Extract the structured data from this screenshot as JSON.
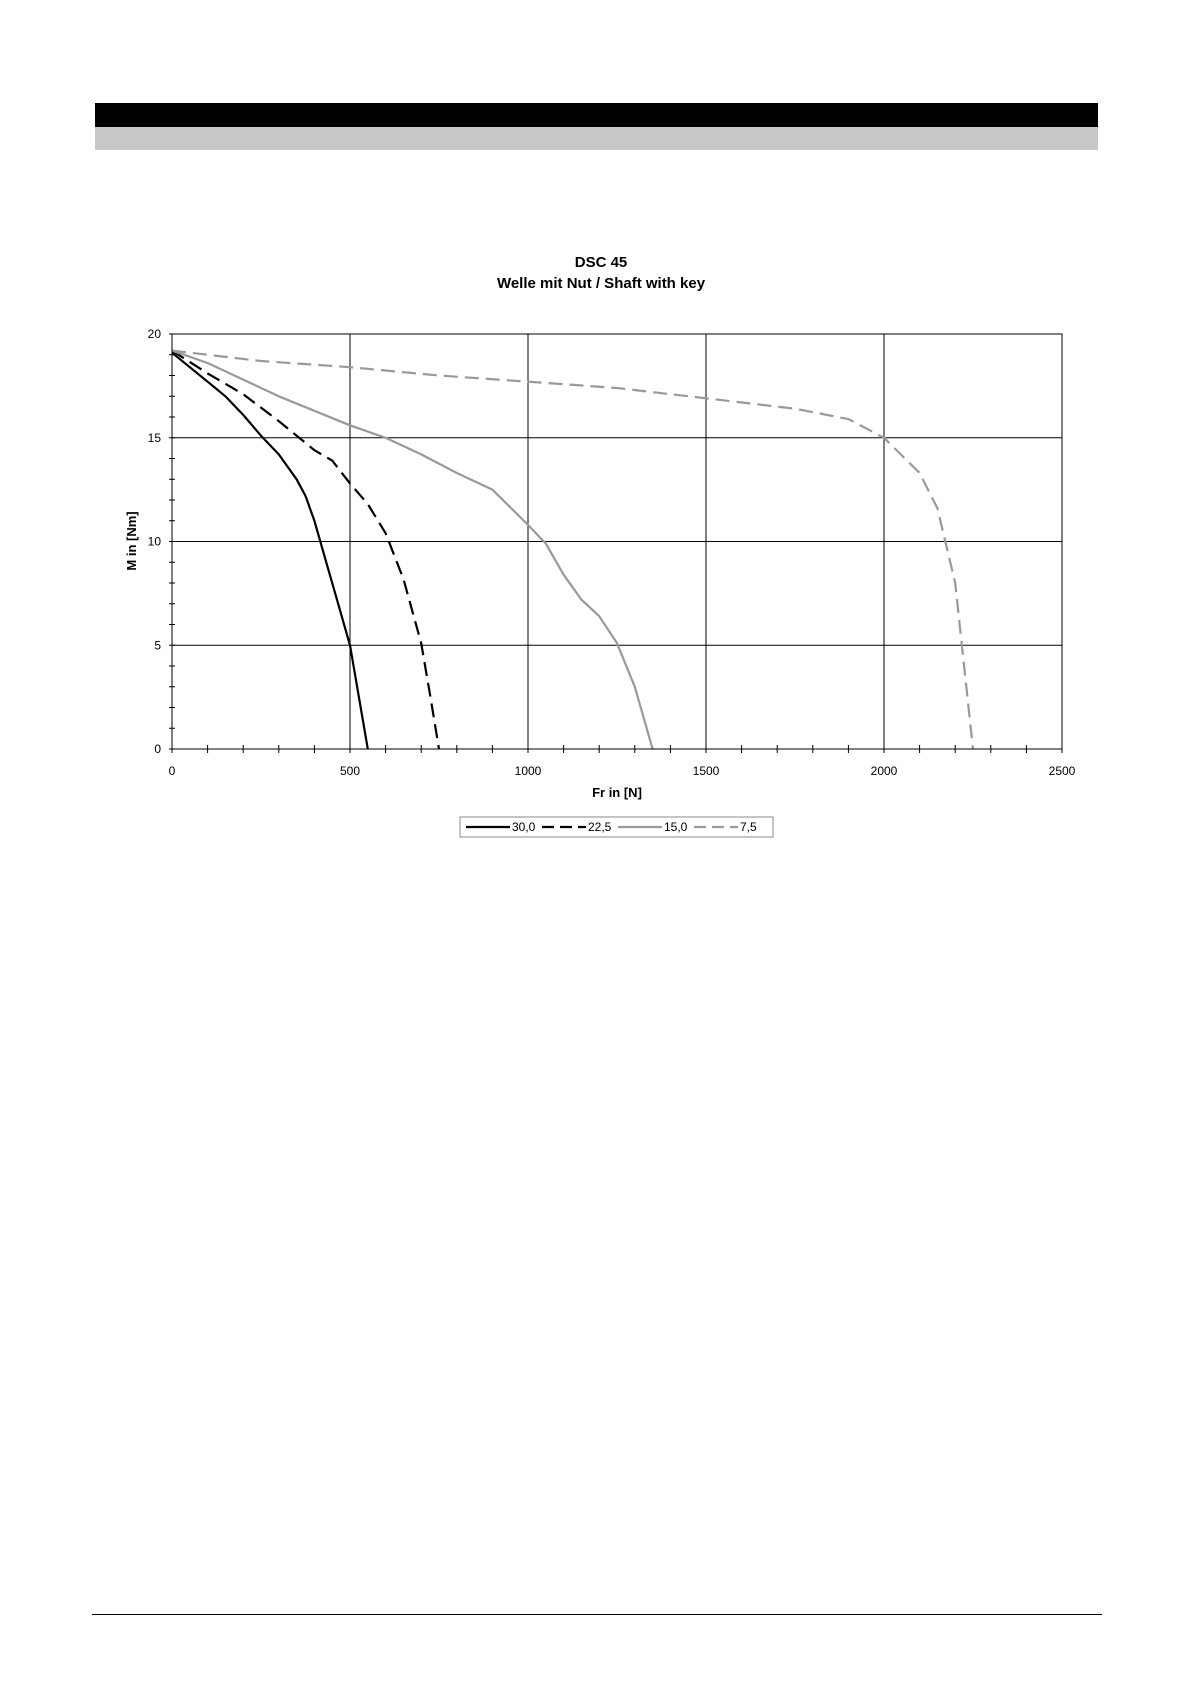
{
  "chart_data": {
    "type": "line",
    "title": "DSC 45",
    "subtitle": "Welle mit Nut / Shaft with key",
    "xlabel": "Fr in [N]",
    "ylabel": "M in [Nm]",
    "xlim": [
      0,
      2500
    ],
    "ylim": [
      0,
      20
    ],
    "xticks": [
      "0",
      "500",
      "1000",
      "1500",
      "2000",
      "2500"
    ],
    "yticks": [
      "0",
      "5",
      "10",
      "15",
      "20"
    ],
    "grid": true,
    "legend_position": "bottom",
    "series": [
      {
        "name": "30,0",
        "color": "#000000",
        "dash": "solid",
        "points": [
          [
            0,
            19.1
          ],
          [
            50,
            18.4
          ],
          [
            100,
            17.7
          ],
          [
            150,
            17.0
          ],
          [
            200,
            16.1
          ],
          [
            250,
            15.1
          ],
          [
            300,
            14.2
          ],
          [
            350,
            13.0
          ],
          [
            375,
            12.2
          ],
          [
            400,
            11.0
          ],
          [
            425,
            9.5
          ],
          [
            450,
            8.0
          ],
          [
            475,
            6.5
          ],
          [
            500,
            5.0
          ],
          [
            525,
            2.5
          ],
          [
            550,
            0.0
          ]
        ]
      },
      {
        "name": "22,5",
        "color": "#000000",
        "dash": "dashed",
        "points": [
          [
            0,
            19.2
          ],
          [
            100,
            18.1
          ],
          [
            200,
            17.1
          ],
          [
            300,
            15.8
          ],
          [
            400,
            14.4
          ],
          [
            450,
            13.9
          ],
          [
            500,
            12.8
          ],
          [
            550,
            11.8
          ],
          [
            600,
            10.4
          ],
          [
            650,
            8.2
          ],
          [
            700,
            5.1
          ],
          [
            725,
            2.6
          ],
          [
            750,
            0.0
          ]
        ]
      },
      {
        "name": "15,0",
        "color": "#999999",
        "dash": "solid",
        "points": [
          [
            0,
            19.2
          ],
          [
            100,
            18.6
          ],
          [
            200,
            17.8
          ],
          [
            300,
            17.0
          ],
          [
            400,
            16.3
          ],
          [
            500,
            15.6
          ],
          [
            600,
            15.0
          ],
          [
            700,
            14.2
          ],
          [
            800,
            13.3
          ],
          [
            900,
            12.5
          ],
          [
            1000,
            10.8
          ],
          [
            1050,
            9.9
          ],
          [
            1100,
            8.4
          ],
          [
            1150,
            7.2
          ],
          [
            1200,
            6.4
          ],
          [
            1250,
            5.1
          ],
          [
            1300,
            3.0
          ],
          [
            1350,
            0.0
          ]
        ]
      },
      {
        "name": "7,5",
        "color": "#999999",
        "dash": "dashed",
        "points": [
          [
            0,
            19.2
          ],
          [
            250,
            18.7
          ],
          [
            500,
            18.4
          ],
          [
            750,
            18.0
          ],
          [
            1000,
            17.7
          ],
          [
            1250,
            17.4
          ],
          [
            1500,
            16.9
          ],
          [
            1750,
            16.4
          ],
          [
            1900,
            15.9
          ],
          [
            2000,
            15.0
          ],
          [
            2100,
            13.3
          ],
          [
            2150,
            11.6
          ],
          [
            2200,
            8.0
          ],
          [
            2225,
            4.0
          ],
          [
            2250,
            0.0
          ]
        ]
      }
    ]
  }
}
